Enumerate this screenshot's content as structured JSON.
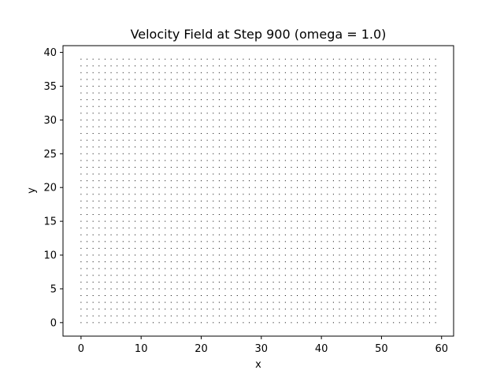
{
  "chart_data": {
    "type": "quiver",
    "title": "Velocity Field at Step 900 (omega = 1.0)",
    "xlabel": "x",
    "ylabel": "y",
    "xlim": [
      -3,
      62
    ],
    "ylim": [
      -2,
      41
    ],
    "xticks": [
      0,
      10,
      20,
      30,
      40,
      50,
      60
    ],
    "yticks": [
      0,
      5,
      10,
      15,
      20,
      25,
      30,
      35,
      40
    ],
    "grid": false,
    "legend": "none",
    "field": {
      "x_start": 0,
      "x_end": 59,
      "x_step": 1,
      "y_start": 0,
      "y_end": 39,
      "y_step": 1,
      "u": 0,
      "v": 0
    },
    "marker_color": "#000000"
  }
}
